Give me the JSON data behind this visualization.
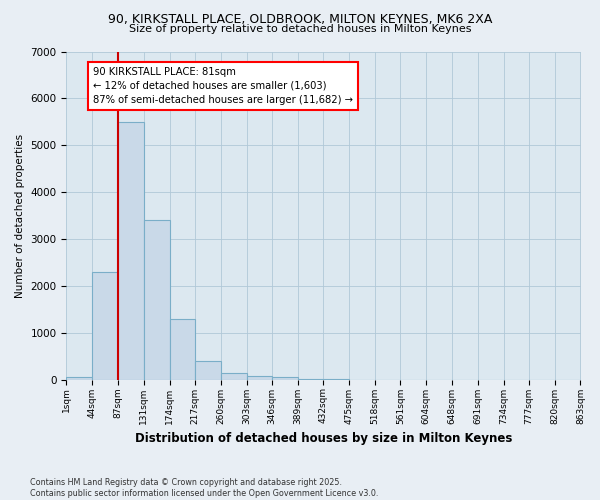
{
  "title_line1": "90, KIRKSTALL PLACE, OLDBROOK, MILTON KEYNES, MK6 2XA",
  "title_line2": "Size of property relative to detached houses in Milton Keynes",
  "xlabel": "Distribution of detached houses by size in Milton Keynes",
  "ylabel": "Number of detached properties",
  "bar_color": "#c9d9e8",
  "bar_edge_color": "#7aaec8",
  "vline_color": "#cc0000",
  "annotation_text": "90 KIRKSTALL PLACE: 81sqm\n← 12% of detached houses are smaller (1,603)\n87% of semi-detached houses are larger (11,682) →",
  "bins": [
    1,
    44,
    87,
    131,
    174,
    217,
    260,
    303,
    346,
    389,
    432,
    475,
    518,
    561,
    604,
    648,
    691,
    734,
    777,
    820,
    863
  ],
  "bar_heights": [
    50,
    2300,
    5500,
    3400,
    1300,
    400,
    150,
    80,
    50,
    10,
    5,
    2,
    1,
    1,
    0,
    0,
    0,
    0,
    0,
    0
  ],
  "ylim": [
    0,
    7000
  ],
  "yticks": [
    0,
    1000,
    2000,
    3000,
    4000,
    5000,
    6000,
    7000
  ],
  "footer_line1": "Contains HM Land Registry data © Crown copyright and database right 2025.",
  "footer_line2": "Contains public sector information licensed under the Open Government Licence v3.0.",
  "background_color": "#e8eef4",
  "plot_bg_color": "#dce8f0"
}
